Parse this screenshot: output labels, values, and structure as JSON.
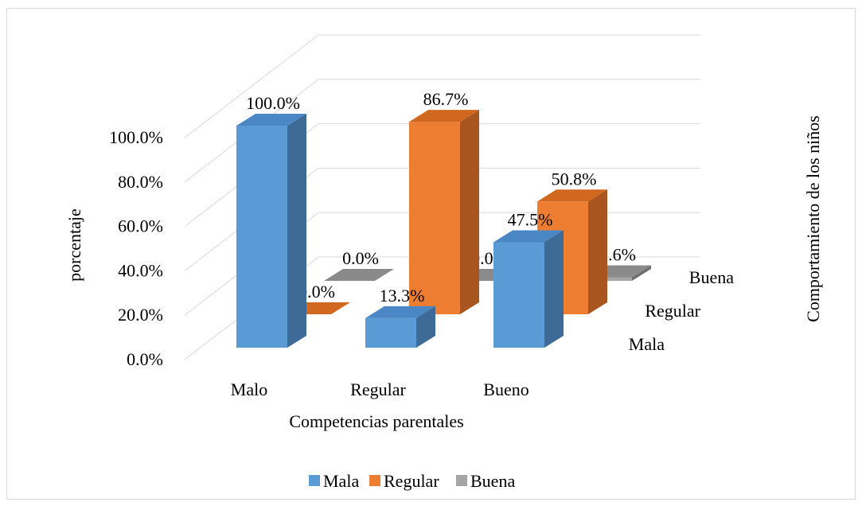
{
  "chart_data": {
    "type": "bar",
    "subtype": "3d-column",
    "categories": [
      "Malo",
      "Regular",
      "Bueno"
    ],
    "series": [
      {
        "name": "Mala",
        "values": [
          100.0,
          13.3,
          47.5
        ],
        "color": "#5b9bd5",
        "side": "#3d6a96",
        "top": "#4a87c4"
      },
      {
        "name": "Regular",
        "values": [
          0.0,
          86.7,
          50.8
        ],
        "color": "#ed7d31",
        "side": "#a95520",
        "top": "#d06820"
      },
      {
        "name": "Buena",
        "values": [
          0.0,
          0.0,
          1.6
        ],
        "color": "#a5a5a5",
        "side": "#6f6f6f",
        "top": "#8a8a8a"
      }
    ],
    "value_labels": [
      [
        "100.0%",
        "13.3%",
        "47.5%"
      ],
      [
        "0.0%",
        "86.7%",
        "50.8%"
      ],
      [
        "0.0%",
        "0.0%",
        "1.6%"
      ]
    ],
    "ylim": [
      0,
      100
    ],
    "yticks": [
      "0.0%",
      "20.0%",
      "40.0%",
      "60.0%",
      "80.0%",
      "100.0%"
    ],
    "xlabel": "Competencias parentales",
    "ylabel": "porcentaje",
    "zlabel": "Comportamiento de los niños",
    "grid": true,
    "legend_position": "bottom",
    "legend": [
      "Mala",
      "Regular",
      "Buena"
    ]
  }
}
